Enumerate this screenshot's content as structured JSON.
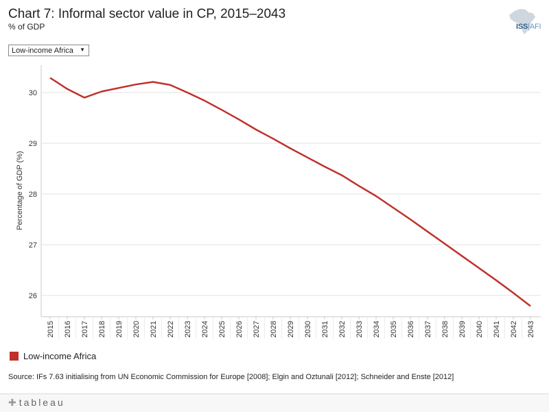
{
  "title": "Chart 7: Informal sector value in CP, 2015–2043",
  "subtitle": "% of GDP",
  "logo": {
    "icon": "africa-map-icon",
    "text_main": "ISS",
    "text_sep": "|",
    "text_sub": "AFI",
    "color": "#2c5f8a"
  },
  "filter": {
    "selected": "Low-income Africa"
  },
  "chart_data": {
    "type": "line",
    "title": "Chart 7: Informal sector value in CP, 2015–2043",
    "subtitle": "% of GDP",
    "xlabel": "",
    "ylabel": "Percentage of GDP (%)",
    "ylim": [
      25.6,
      30.5
    ],
    "yticks": [
      26,
      27,
      28,
      29,
      30
    ],
    "grid": true,
    "legend_position": "bottom-left",
    "x": [
      "2015",
      "2016",
      "2017",
      "2018",
      "2019",
      "2020",
      "2021",
      "2022",
      "2023",
      "2024",
      "2025",
      "2026",
      "2027",
      "2028",
      "2029",
      "2030",
      "2031",
      "2032",
      "2033",
      "2034",
      "2035",
      "2036",
      "2037",
      "2038",
      "2039",
      "2040",
      "2041",
      "2042",
      "2043"
    ],
    "series": [
      {
        "name": "Low-income Africa",
        "color": "#c0302b",
        "values": [
          30.29,
          30.07,
          29.9,
          30.02,
          30.09,
          30.16,
          30.21,
          30.15,
          30.0,
          29.84,
          29.66,
          29.47,
          29.27,
          29.09,
          28.9,
          28.72,
          28.54,
          28.37,
          28.16,
          27.96,
          27.73,
          27.5,
          27.26,
          27.02,
          26.78,
          26.54,
          26.3,
          26.05,
          25.79
        ]
      }
    ]
  },
  "source": "Source: IFs 7.63 initialising from UN Economic Commission for Europe [2008]; Elgin and Oztunali [2012]; Schneider and Enste [2012]",
  "footer": {
    "brand": "tableau",
    "brand_icon": "tableau-plus-icon"
  }
}
